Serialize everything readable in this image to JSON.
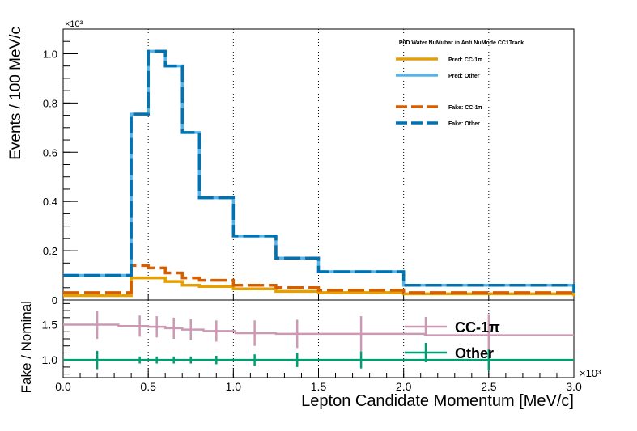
{
  "chart_data": {
    "type": "line",
    "top_panel": {
      "legend_title": "P0D Water NuMubar in Anti NuMode CC1Track",
      "ylabel": "Events / 100 MeV/c",
      "y_exponent": "×10³",
      "ylim": [
        0,
        1.1
      ],
      "yticks": [
        "0",
        "0.2",
        "0.4",
        "0.6",
        "0.8",
        "1.0"
      ],
      "bin_edges": [
        0,
        0.4,
        0.5,
        0.6,
        0.7,
        0.8,
        1.0,
        1.25,
        1.5,
        2.0,
        3.0
      ],
      "series": [
        {
          "name": "Pred: CC-1π",
          "color": "#E69F00",
          "style": "solid",
          "values": [
            0.018,
            0.09,
            0.09,
            0.075,
            0.06,
            0.055,
            0.045,
            0.035,
            0.03,
            0.025,
            0.015
          ]
        },
        {
          "name": "Pred: Other",
          "color": "#56B4E9",
          "style": "solid",
          "values": [
            0.1,
            0.755,
            1.01,
            0.95,
            0.68,
            0.415,
            0.26,
            0.17,
            0.115,
            0.06,
            0.03
          ]
        },
        {
          "name": "Fake: CC-1π",
          "color": "#D55E00",
          "style": "dashed",
          "values": [
            0.03,
            0.14,
            0.13,
            0.11,
            0.09,
            0.08,
            0.06,
            0.05,
            0.04,
            0.03,
            0.02
          ]
        },
        {
          "name": "Fake: Other",
          "color": "#0072B2",
          "style": "dashed",
          "values": [
            0.1,
            0.755,
            1.01,
            0.95,
            0.68,
            0.415,
            0.26,
            0.17,
            0.115,
            0.06,
            0.03
          ]
        }
      ]
    },
    "bottom_panel": {
      "ylabel": "Fake / Nominal",
      "ylim": [
        0.75,
        1.85
      ],
      "yticks": [
        "1.0",
        "1.5"
      ],
      "series": [
        {
          "name": "CC-1π",
          "color": "#CC99B4",
          "points": [
            [
              0.2,
              1.5,
              0.2
            ],
            [
              0.45,
              1.48,
              0.15
            ],
            [
              0.55,
              1.47,
              0.15
            ],
            [
              0.65,
              1.45,
              0.15
            ],
            [
              0.75,
              1.43,
              0.15
            ],
            [
              0.9,
              1.41,
              0.15
            ],
            [
              1.125,
              1.38,
              0.18
            ],
            [
              1.375,
              1.37,
              0.2
            ],
            [
              1.75,
              1.37,
              0.25
            ],
            [
              2.5,
              1.35,
              0.3
            ]
          ]
        },
        {
          "name": "Other",
          "color": "#009E73",
          "points": [
            [
              0.2,
              1.0,
              0.13
            ],
            [
              0.45,
              1.0,
              0.05
            ],
            [
              0.55,
              1.0,
              0.05
            ],
            [
              0.65,
              1.0,
              0.05
            ],
            [
              0.75,
              1.0,
              0.05
            ],
            [
              0.9,
              1.0,
              0.06
            ],
            [
              1.125,
              1.0,
              0.08
            ],
            [
              1.375,
              1.0,
              0.1
            ],
            [
              1.75,
              1.0,
              0.12
            ],
            [
              2.5,
              1.0,
              0.15
            ]
          ]
        }
      ]
    },
    "x_axis": {
      "label": "Lepton Candidate Momentum [MeV/c]",
      "xlim": [
        0,
        3.0
      ],
      "ticks": [
        "0.0",
        "0.5",
        "1.0",
        "1.5",
        "2.0",
        "2.5",
        "3.0"
      ],
      "exponent": "×10³"
    },
    "grid": "vertical dotted"
  }
}
